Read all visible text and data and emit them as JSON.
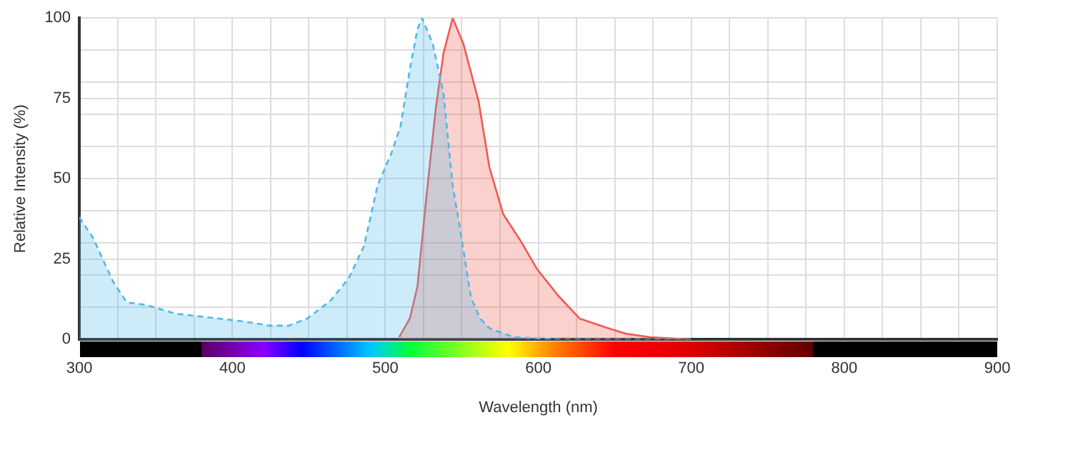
{
  "chart_data": {
    "type": "area",
    "xlabel": "Wavelength (nm)",
    "ylabel": "Relative Intensity (%)",
    "xlim": [
      300,
      900
    ],
    "xticks": [
      300,
      {
        "value": 325,
        "label": null
      },
      {
        "value": 350,
        "label": null
      },
      {
        "value": 375,
        "label": null
      },
      400,
      {
        "value": 425,
        "label": null
      },
      {
        "value": 450,
        "label": null
      },
      {
        "value": 475,
        "label": null
      },
      500,
      {
        "value": 525,
        "label": null
      },
      {
        "value": 550,
        "label": null
      },
      {
        "value": 575,
        "label": null
      },
      600,
      {
        "value": 625,
        "label": null
      },
      {
        "value": 650,
        "label": null
      },
      {
        "value": 675,
        "label": null
      },
      700,
      {
        "value": 725,
        "label": null
      },
      {
        "value": 750,
        "label": null
      },
      {
        "value": 775,
        "label": null
      },
      800,
      {
        "value": 825,
        "label": null
      },
      {
        "value": 850,
        "label": null
      },
      {
        "value": 875,
        "label": null
      },
      900
    ],
    "ylim": [
      0,
      100
    ],
    "yticks": [
      0,
      {
        "value": 10,
        "label": null
      },
      {
        "value": 20,
        "label": null
      },
      25,
      {
        "value": 30,
        "label": null
      },
      {
        "value": 40,
        "label": null
      },
      50,
      {
        "value": 60,
        "label": null
      },
      {
        "value": 70,
        "label": null
      },
      75,
      {
        "value": 80,
        "label": null
      },
      {
        "value": 90,
        "label": null
      },
      100
    ],
    "grid": true,
    "legend": false,
    "marker": "none",
    "series": [
      {
        "color": "#4fb8e8",
        "line_style": "dashed",
        "x": [
          300,
          309,
          322,
          331,
          343,
          363,
          391,
          409,
          424,
          437,
          449,
          464,
          476,
          486,
          495,
          504,
          510,
          516,
          521,
          524,
          531,
          538,
          544,
          550,
          556,
          562,
          568,
          584,
          614,
          700
        ],
        "values": [
          38,
          31.5,
          18,
          11.5,
          10.8,
          8,
          6.5,
          5.5,
          4.3,
          4.3,
          6.5,
          12,
          19,
          29,
          48,
          58,
          66.5,
          84,
          96.5,
          100,
          92,
          76.5,
          48,
          31,
          13,
          6.5,
          3.5,
          0.7,
          0,
          0
        ]
      },
      {
        "color": "#f05a50",
        "line_style": "solid",
        "x": [
          509,
          516,
          521,
          527,
          533,
          538,
          544,
          551,
          561,
          568,
          577,
          588,
          599,
          613,
          627,
          645,
          657,
          673,
          700
        ],
        "values": [
          0.7,
          6.5,
          16.5,
          45,
          72,
          89,
          100,
          92,
          74,
          53.6,
          39,
          31,
          22,
          13.6,
          6.5,
          3.6,
          1.8,
          0.7,
          0
        ]
      }
    ]
  }
}
